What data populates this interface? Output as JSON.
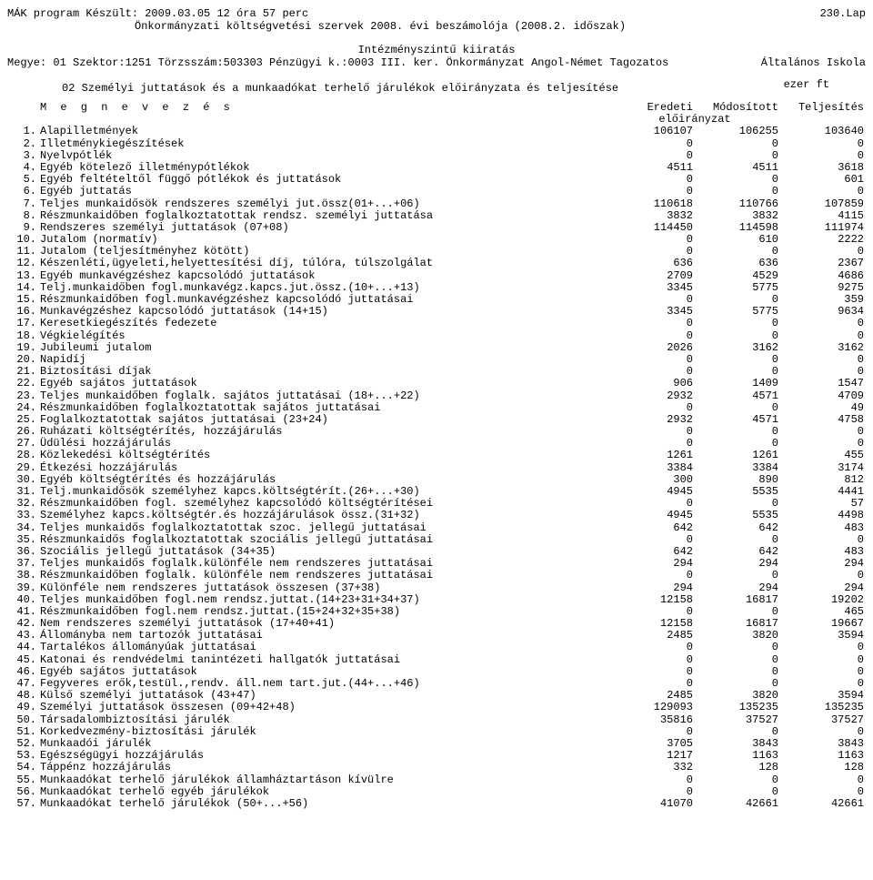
{
  "header": {
    "program_line": "MÁK program Készült: 2009.03.05  12 óra 57 perc",
    "page_label": "230.Lap",
    "subtitle": "Önkormányzati költségvetési szervek 2008. évi beszámolója (2008.2. időszak)",
    "level_title": "Intézményszintű kiiratás",
    "org_line_left": "Megye: 01  Szektor:1251  Törzsszám:503303 Pénzügyi k.:0003  III. ker. Önkormányzat Angol-Német Tagozatos",
    "org_line_right": "Általános Iskola",
    "section_title": "02 Személyi juttatások és a munkaadókat terhelő járulékok előirányzata és teljesítése",
    "unit": "ezer ft",
    "col_megnevezes": "M e g n e v e z é s",
    "col_eredeti": "Eredeti",
    "col_modositott": "Módosított",
    "col_teljesites": "Teljesítés",
    "col_eloiranyzat": "előirányzat"
  },
  "rows": [
    {
      "n": "1.",
      "label": "Alapilletmények",
      "a": "106107",
      "b": "106255",
      "c": "103640"
    },
    {
      "n": "2.",
      "label": "Illetménykiegészítések",
      "a": "0",
      "b": "0",
      "c": "0"
    },
    {
      "n": "3.",
      "label": "Nyelvpótlék",
      "a": "0",
      "b": "0",
      "c": "0"
    },
    {
      "n": "4.",
      "label": "Egyéb kötelező illetménypótlékok",
      "a": "4511",
      "b": "4511",
      "c": "3618"
    },
    {
      "n": "5.",
      "label": "Egyéb feltételtől függő pótlékok és juttatások",
      "a": "0",
      "b": "0",
      "c": "601"
    },
    {
      "n": "6.",
      "label": "Egyéb juttatás",
      "a": "0",
      "b": "0",
      "c": "0"
    },
    {
      "n": "7.",
      "label": " Teljes munkaidősök rendszeres személyi jut.össz(01+...+06)",
      "a": "110618",
      "b": "110766",
      "c": "107859"
    },
    {
      "n": "8.",
      "label": "Részmunkaidőben foglalkoztatottak rendsz. személyi juttatása",
      "a": "3832",
      "b": "3832",
      "c": "4115"
    },
    {
      "n": "9.",
      "label": " Rendszeres személyi juttatások (07+08)",
      "a": "114450",
      "b": "114598",
      "c": "111974"
    },
    {
      "n": "10.",
      "label": "Jutalom (normatív)",
      "a": "0",
      "b": "610",
      "c": "2222"
    },
    {
      "n": "11.",
      "label": "Jutalom (teljesítményhez kötött)",
      "a": "0",
      "b": "0",
      "c": "0"
    },
    {
      "n": "12.",
      "label": "Készenléti,ügyeleti,helyettesítési díj, túlóra, túlszolgálat",
      "a": "636",
      "b": "636",
      "c": "2367"
    },
    {
      "n": "13.",
      "label": "Egyéb munkavégzéshez kapcsolódó juttatások",
      "a": "2709",
      "b": "4529",
      "c": "4686"
    },
    {
      "n": "14.",
      "label": " Telj.munkaidőben fogl.munkavégz.kapcs.jut.össz.(10+...+13)",
      "a": "3345",
      "b": "5775",
      "c": "9275"
    },
    {
      "n": "15.",
      "label": "Részmunkaidőben fogl.munkavégzéshez kapcsolódó juttatásai",
      "a": "0",
      "b": "0",
      "c": "359"
    },
    {
      "n": "16.",
      "label": " Munkavégzéshez kapcsolódó juttatások (14+15)",
      "a": "3345",
      "b": "5775",
      "c": "9634"
    },
    {
      "n": "17.",
      "label": "Keresetkiegészítés fedezete",
      "a": "0",
      "b": "0",
      "c": "0"
    },
    {
      "n": "18.",
      "label": "Végkielégítés",
      "a": "0",
      "b": "0",
      "c": "0"
    },
    {
      "n": "19.",
      "label": "Jubileumi jutalom",
      "a": "2026",
      "b": "3162",
      "c": "3162"
    },
    {
      "n": "20.",
      "label": "Napidíj",
      "a": "0",
      "b": "0",
      "c": "0"
    },
    {
      "n": "21.",
      "label": "Biztosítási díjak",
      "a": "0",
      "b": "0",
      "c": "0"
    },
    {
      "n": "22.",
      "label": "Egyéb sajátos juttatások",
      "a": "906",
      "b": "1409",
      "c": "1547"
    },
    {
      "n": "23.",
      "label": "  Teljes munkaidőben foglalk. sajátos juttatásai (18+...+22)",
      "a": "2932",
      "b": "4571",
      "c": "4709"
    },
    {
      "n": "24.",
      "label": "Részmunkaidőben foglalkoztatottak sajátos juttatásai",
      "a": "0",
      "b": "0",
      "c": "49"
    },
    {
      "n": "25.",
      "label": "  Foglalkoztatottak sajátos juttatásai (23+24)",
      "a": "2932",
      "b": "4571",
      "c": "4758"
    },
    {
      "n": "26.",
      "label": "Ruházati költségtérítés, hozzájárulás",
      "a": "0",
      "b": "0",
      "c": "0"
    },
    {
      "n": "27.",
      "label": "Üdülési hozzájárulás",
      "a": "0",
      "b": "0",
      "c": "0"
    },
    {
      "n": "28.",
      "label": "Közlekedési költségtérítés",
      "a": "1261",
      "b": "1261",
      "c": "455"
    },
    {
      "n": "29.",
      "label": "Étkezési hozzájárulás",
      "a": "3384",
      "b": "3384",
      "c": "3174"
    },
    {
      "n": "30.",
      "label": "Egyéb költségtérítés és hozzájárulás",
      "a": "300",
      "b": "890",
      "c": "812"
    },
    {
      "n": "31.",
      "label": "  Telj.munkaidősök személyhez kapcs.költségtérít.(26+...+30)",
      "a": "4945",
      "b": "5535",
      "c": "4441"
    },
    {
      "n": "32.",
      "label": "Részmunkaidőben fogl. személyhez kapcsolódó költségtérítései",
      "a": "0",
      "b": "0",
      "c": "57"
    },
    {
      "n": "33.",
      "label": "  Személyhez kapcs.költségtér.és hozzájárulások össz.(31+32)",
      "a": "4945",
      "b": "5535",
      "c": "4498"
    },
    {
      "n": "34.",
      "label": "Teljes munkaidős foglalkoztatottak szoc. jellegű juttatásai",
      "a": "642",
      "b": "642",
      "c": "483"
    },
    {
      "n": "35.",
      "label": "Részmunkaidős foglalkoztatottak szociális jellegű juttatásai",
      "a": "0",
      "b": "0",
      "c": "0"
    },
    {
      "n": "36.",
      "label": "  Szociális jellegű juttatások (34+35)",
      "a": "642",
      "b": "642",
      "c": "483"
    },
    {
      "n": "37.",
      "label": "Teljes munkaidős foglalk.különféle nem rendszeres juttatásai",
      "a": "294",
      "b": "294",
      "c": "294"
    },
    {
      "n": "38.",
      "label": "Részmunkaidőben foglalk. különféle nem rendszeres juttatásai",
      "a": "0",
      "b": "0",
      "c": "0"
    },
    {
      "n": "39.",
      "label": " Különféle nem rendszeres juttatások összesen (37+38)",
      "a": "294",
      "b": "294",
      "c": "294"
    },
    {
      "n": "40.",
      "label": "  Teljes munkaidőben fogl.nem rendsz.juttat.(14+23+31+34+37)",
      "a": "12158",
      "b": "16817",
      "c": "19202"
    },
    {
      "n": "41.",
      "label": "  Részmunkaidőben fogl.nem rendsz.juttat.(15+24+32+35+38)",
      "a": "0",
      "b": "0",
      "c": "465"
    },
    {
      "n": "42.",
      "label": "  Nem rendszeres személyi juttatások (17+40+41)",
      "a": "12158",
      "b": "16817",
      "c": "19667"
    },
    {
      "n": "43.",
      "label": "Állományba nem tartozók juttatásai",
      "a": "2485",
      "b": "3820",
      "c": "3594"
    },
    {
      "n": "44.",
      "label": "Tartalékos állományúak juttatásai",
      "a": "0",
      "b": "0",
      "c": "0"
    },
    {
      "n": "45.",
      "label": "Katonai és rendvédelmi tanintézeti hallgatók juttatásai",
      "a": "0",
      "b": "0",
      "c": "0"
    },
    {
      "n": "46.",
      "label": "Egyéb sajátos juttatások",
      "a": "0",
      "b": "0",
      "c": "0"
    },
    {
      "n": "47.",
      "label": "  Fegyveres erők,testül.,rendv. áll.nem tart.jut.(44+...+46)",
      "a": "0",
      "b": "0",
      "c": "0"
    },
    {
      "n": "48.",
      "label": "  Külső személyi juttatások (43+47)",
      "a": "2485",
      "b": "3820",
      "c": "3594"
    },
    {
      "n": "49.",
      "label": "  Személyi juttatások összesen (09+42+48)",
      "a": "129093",
      "b": "135235",
      "c": "135235"
    },
    {
      "n": "50.",
      "label": "Társadalombiztosítási járulék",
      "a": "35816",
      "b": "37527",
      "c": "37527"
    },
    {
      "n": "51.",
      "label": "Korkedvezmény-biztosítási járulék",
      "a": "0",
      "b": "0",
      "c": "0"
    },
    {
      "n": "52.",
      "label": "Munkaadói járulék",
      "a": "3705",
      "b": "3843",
      "c": "3843"
    },
    {
      "n": "53.",
      "label": "Egészségügyi hozzájárulás",
      "a": "1217",
      "b": "1163",
      "c": "1163"
    },
    {
      "n": "54.",
      "label": "Táppénz hozzájárulás",
      "a": "332",
      "b": "128",
      "c": "128"
    },
    {
      "n": "55.",
      "label": "Munkaadókat terhelő járulékok államháztartáson kívülre",
      "a": "0",
      "b": "0",
      "c": "0"
    },
    {
      "n": "56.",
      "label": "Munkaadókat terhelő egyéb járulékok",
      "a": "0",
      "b": "0",
      "c": "0"
    },
    {
      "n": "57.",
      "label": " Munkaadókat terhelő járulékok (50+...+56)",
      "a": "41070",
      "b": "42661",
      "c": "42661"
    }
  ]
}
